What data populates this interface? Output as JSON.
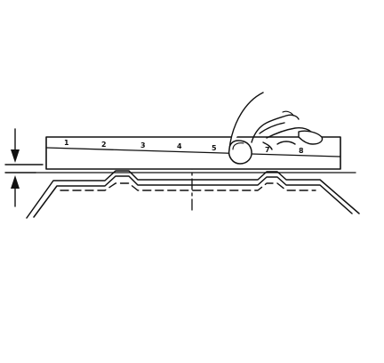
{
  "diagram": {
    "ruler_labels": [
      "1",
      "2",
      "3",
      "4",
      "5",
      "7",
      "8"
    ]
  }
}
